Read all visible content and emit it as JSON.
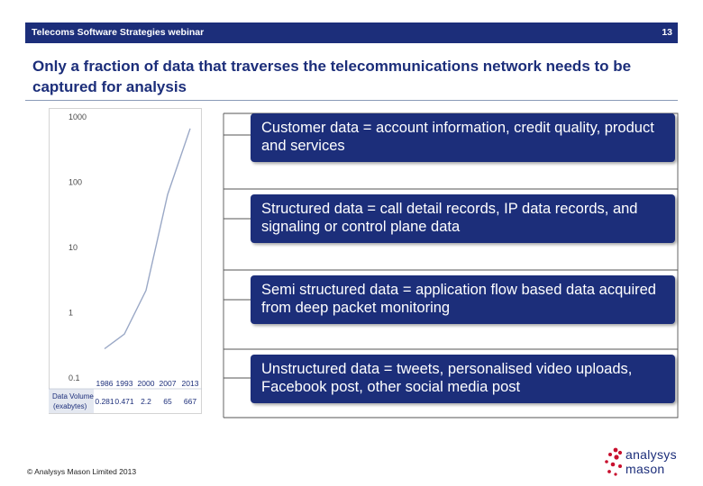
{
  "header": {
    "title": "Telecoms Software Strategies webinar",
    "page_number": "13"
  },
  "slide": {
    "title": "Only a fraction of data that traverses the telecommunications network needs to be captured for analysis"
  },
  "chart_data": {
    "type": "line",
    "x": [
      "1986",
      "1993",
      "2000",
      "2007",
      "2013"
    ],
    "series": [
      {
        "values": [
          0.281,
          0.471,
          2.2,
          65,
          667
        ]
      }
    ],
    "yscale": "log",
    "ylim": [
      0.1,
      1000
    ],
    "y_ticks": [
      "1000",
      "100",
      "10",
      "1",
      "0.1"
    ],
    "table_row_label": "Data Volume (exabytes)",
    "table_values": [
      "0.281",
      "0.471",
      "2.2",
      "65",
      "667"
    ],
    "line_color": "#9aa8c6",
    "grid": false
  },
  "callouts": [
    {
      "text": "Customer data = account information, credit quality, product and services"
    },
    {
      "text": "Structured data = call detail records, IP data records, and signaling or control plane data"
    },
    {
      "text": "Semi structured data = application flow based data acquired from deep packet monitoring"
    },
    {
      "text": "Unstructured data = tweets, personalised video uploads, Facebook post, other social media post"
    }
  ],
  "footer": {
    "copyright": "© Analysys Mason Limited 2013"
  },
  "logo": {
    "line1": "analysys",
    "line2": "mason",
    "dot_color": "#c8102e"
  }
}
